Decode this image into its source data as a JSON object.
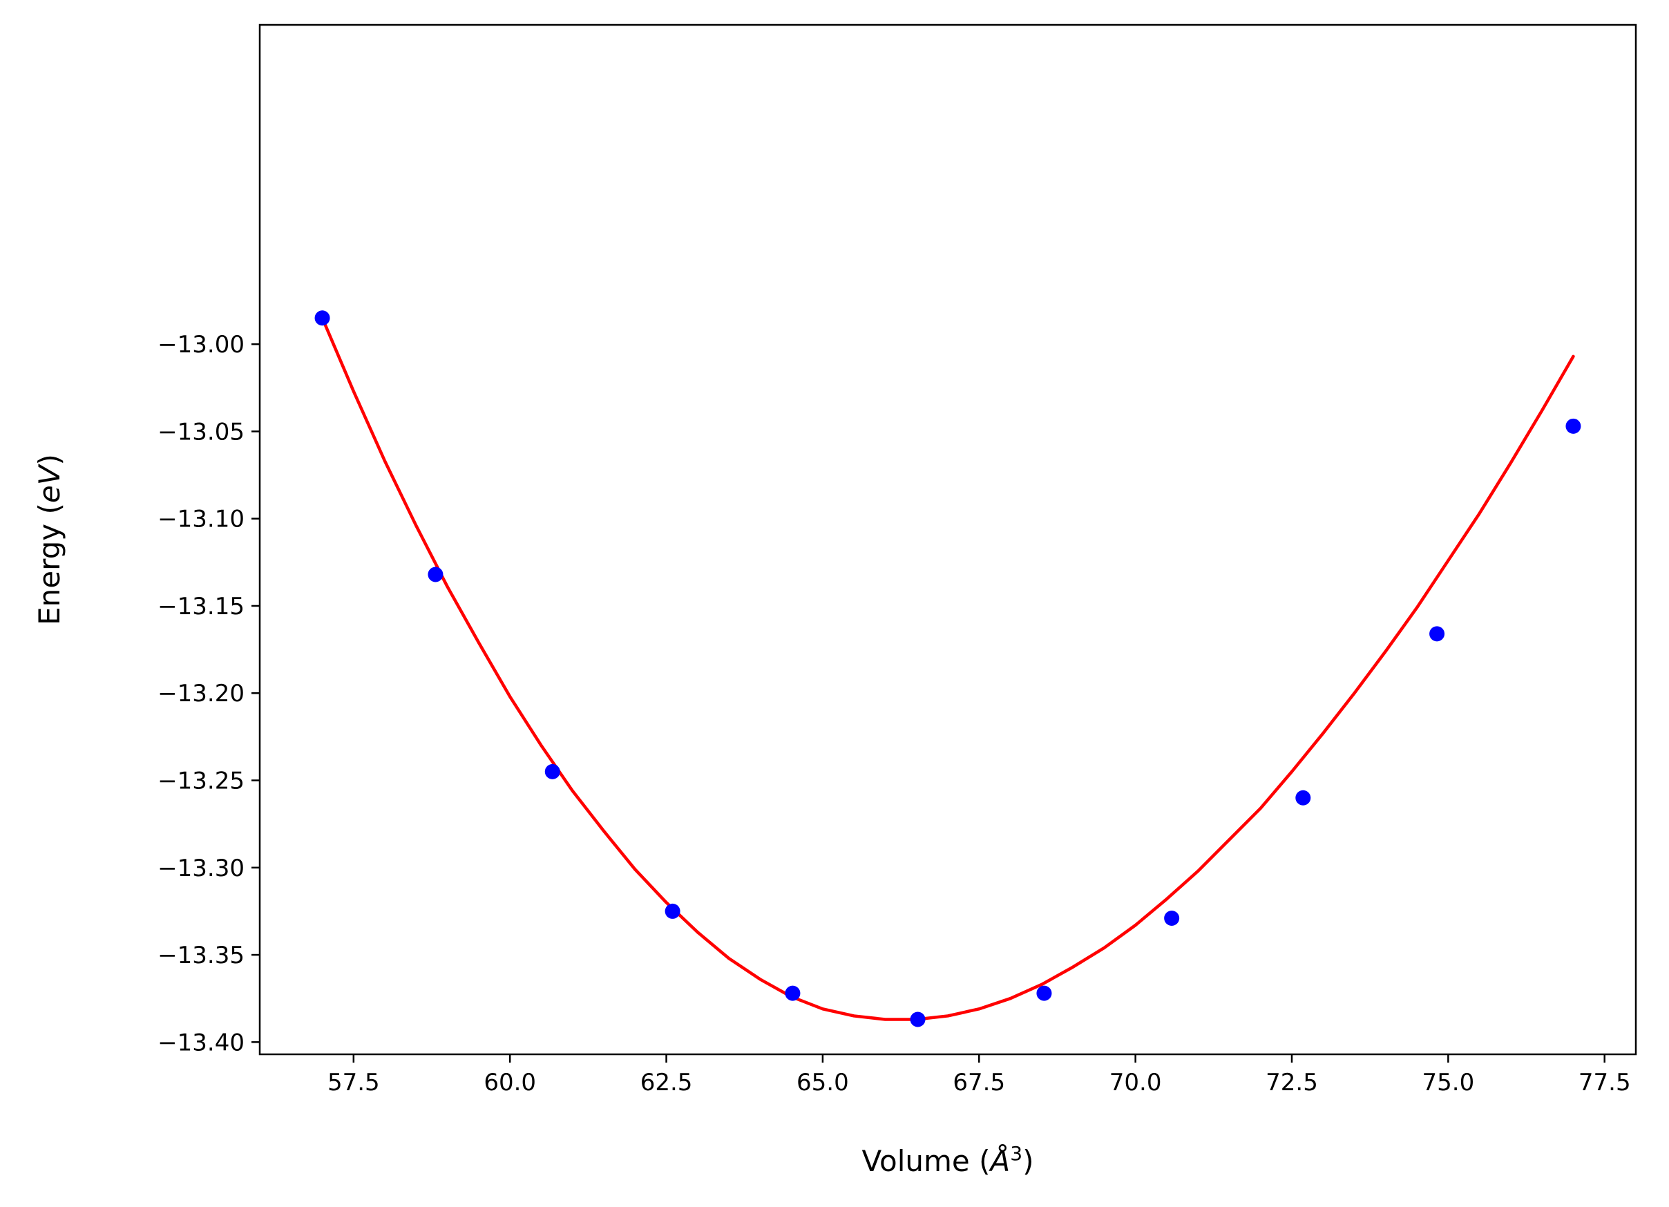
{
  "chart_data": {
    "type": "scatter",
    "title": "",
    "xlabel": {
      "prefix": "Volume (",
      "symbol": "Å",
      "exponent": "3",
      "suffix": ")"
    },
    "ylabel": {
      "prefix": "Energy (",
      "symbol": "eV",
      "suffix": ")"
    },
    "xlim": [
      56.0,
      78.0
    ],
    "ylim": [
      -13.407,
      -12.817
    ],
    "xticks": [
      57.5,
      60.0,
      62.5,
      65.0,
      67.5,
      70.0,
      72.5,
      75.0,
      77.5
    ],
    "xtick_labels": [
      "57.5",
      "60.0",
      "62.5",
      "65.0",
      "67.5",
      "70.0",
      "72.5",
      "75.0",
      "77.5"
    ],
    "yticks": [
      -13.0,
      -13.05,
      -13.1,
      -13.15,
      -13.2,
      -13.25,
      -13.3,
      -13.35,
      -13.4
    ],
    "ytick_labels": [
      "−13.00",
      "−13.05",
      "−13.10",
      "−13.15",
      "−13.20",
      "−13.25",
      "−13.30",
      "−13.35",
      "−13.40"
    ],
    "grid": false,
    "series": [
      {
        "kind": "points",
        "color": "#0000ff",
        "x": [
          57.0,
          58.81,
          60.68,
          62.6,
          64.52,
          66.52,
          68.54,
          70.58,
          72.68,
          74.82,
          77.0
        ],
        "y": [
          -12.985,
          -13.132,
          -13.245,
          -13.325,
          -13.372,
          -13.387,
          -13.372,
          -13.329,
          -13.26,
          -13.166,
          -13.047
        ]
      },
      {
        "kind": "fit_curve",
        "color": "#ff0000",
        "x": [
          57.0,
          57.5,
          58.0,
          58.5,
          59.0,
          59.5,
          60.0,
          60.5,
          61.0,
          61.5,
          62.0,
          62.5,
          63.0,
          63.5,
          64.0,
          64.5,
          65.0,
          65.5,
          66.0,
          66.5,
          67.0,
          67.5,
          68.0,
          68.5,
          69.0,
          69.5,
          70.0,
          70.5,
          71.0,
          71.5,
          72.0,
          72.5,
          73.0,
          73.5,
          74.0,
          74.5,
          75.0,
          75.5,
          76.0,
          76.5,
          77.0
        ],
        "y": [
          -12.985,
          -13.027,
          -13.067,
          -13.104,
          -13.139,
          -13.171,
          -13.202,
          -13.23,
          -13.256,
          -13.279,
          -13.301,
          -13.32,
          -13.337,
          -13.352,
          -13.364,
          -13.374,
          -13.381,
          -13.385,
          -13.387,
          -13.387,
          -13.385,
          -13.381,
          -13.375,
          -13.367,
          -13.357,
          -13.346,
          -13.333,
          -13.318,
          -13.302,
          -13.284,
          -13.266,
          -13.245,
          -13.223,
          -13.2,
          -13.176,
          -13.151,
          -13.124,
          -13.097,
          -13.068,
          -13.038,
          -13.007
        ]
      }
    ]
  }
}
